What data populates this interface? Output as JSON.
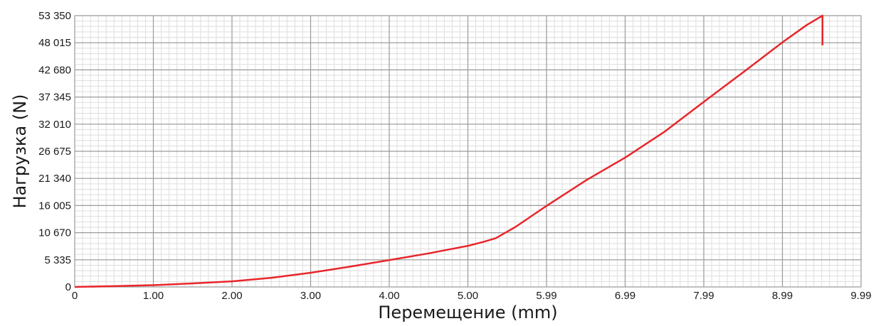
{
  "chart_data": {
    "type": "line",
    "title": "",
    "xlabel": "Перемещение (mm)",
    "ylabel": "Нагрузка (N)",
    "x_ticks": [
      "0",
      "1.00",
      "2.00",
      "3.00",
      "4.00",
      "5.00",
      "5.99",
      "6.99",
      "7.99",
      "8.99",
      "9.99"
    ],
    "y_ticks": [
      "0",
      "5 335",
      "10 670",
      "16 005",
      "21 340",
      "26 675",
      "32 010",
      "37 345",
      "42 680",
      "48 015",
      "53 350"
    ],
    "xlim": [
      0,
      9.99
    ],
    "ylim": [
      0,
      53350
    ],
    "grid": true,
    "series": [
      {
        "color": "#e8262b",
        "x": [
          0,
          0.5,
          1.0,
          1.5,
          2.0,
          2.5,
          3.0,
          3.5,
          4.0,
          4.5,
          5.0,
          5.2,
          5.35,
          5.6,
          6.0,
          6.5,
          7.0,
          7.5,
          8.0,
          8.5,
          9.0,
          9.3,
          9.5,
          9.5
        ],
        "y": [
          0,
          150,
          350,
          700,
          1100,
          1800,
          2800,
          4000,
          5300,
          6600,
          8100,
          8900,
          9600,
          11800,
          16000,
          21000,
          25500,
          30600,
          36500,
          42300,
          48200,
          51500,
          53350,
          47500
        ]
      }
    ],
    "colors": {
      "line": "#e8262b",
      "grid_major": "#9a9a9a",
      "grid_minor": "#dedede"
    }
  }
}
